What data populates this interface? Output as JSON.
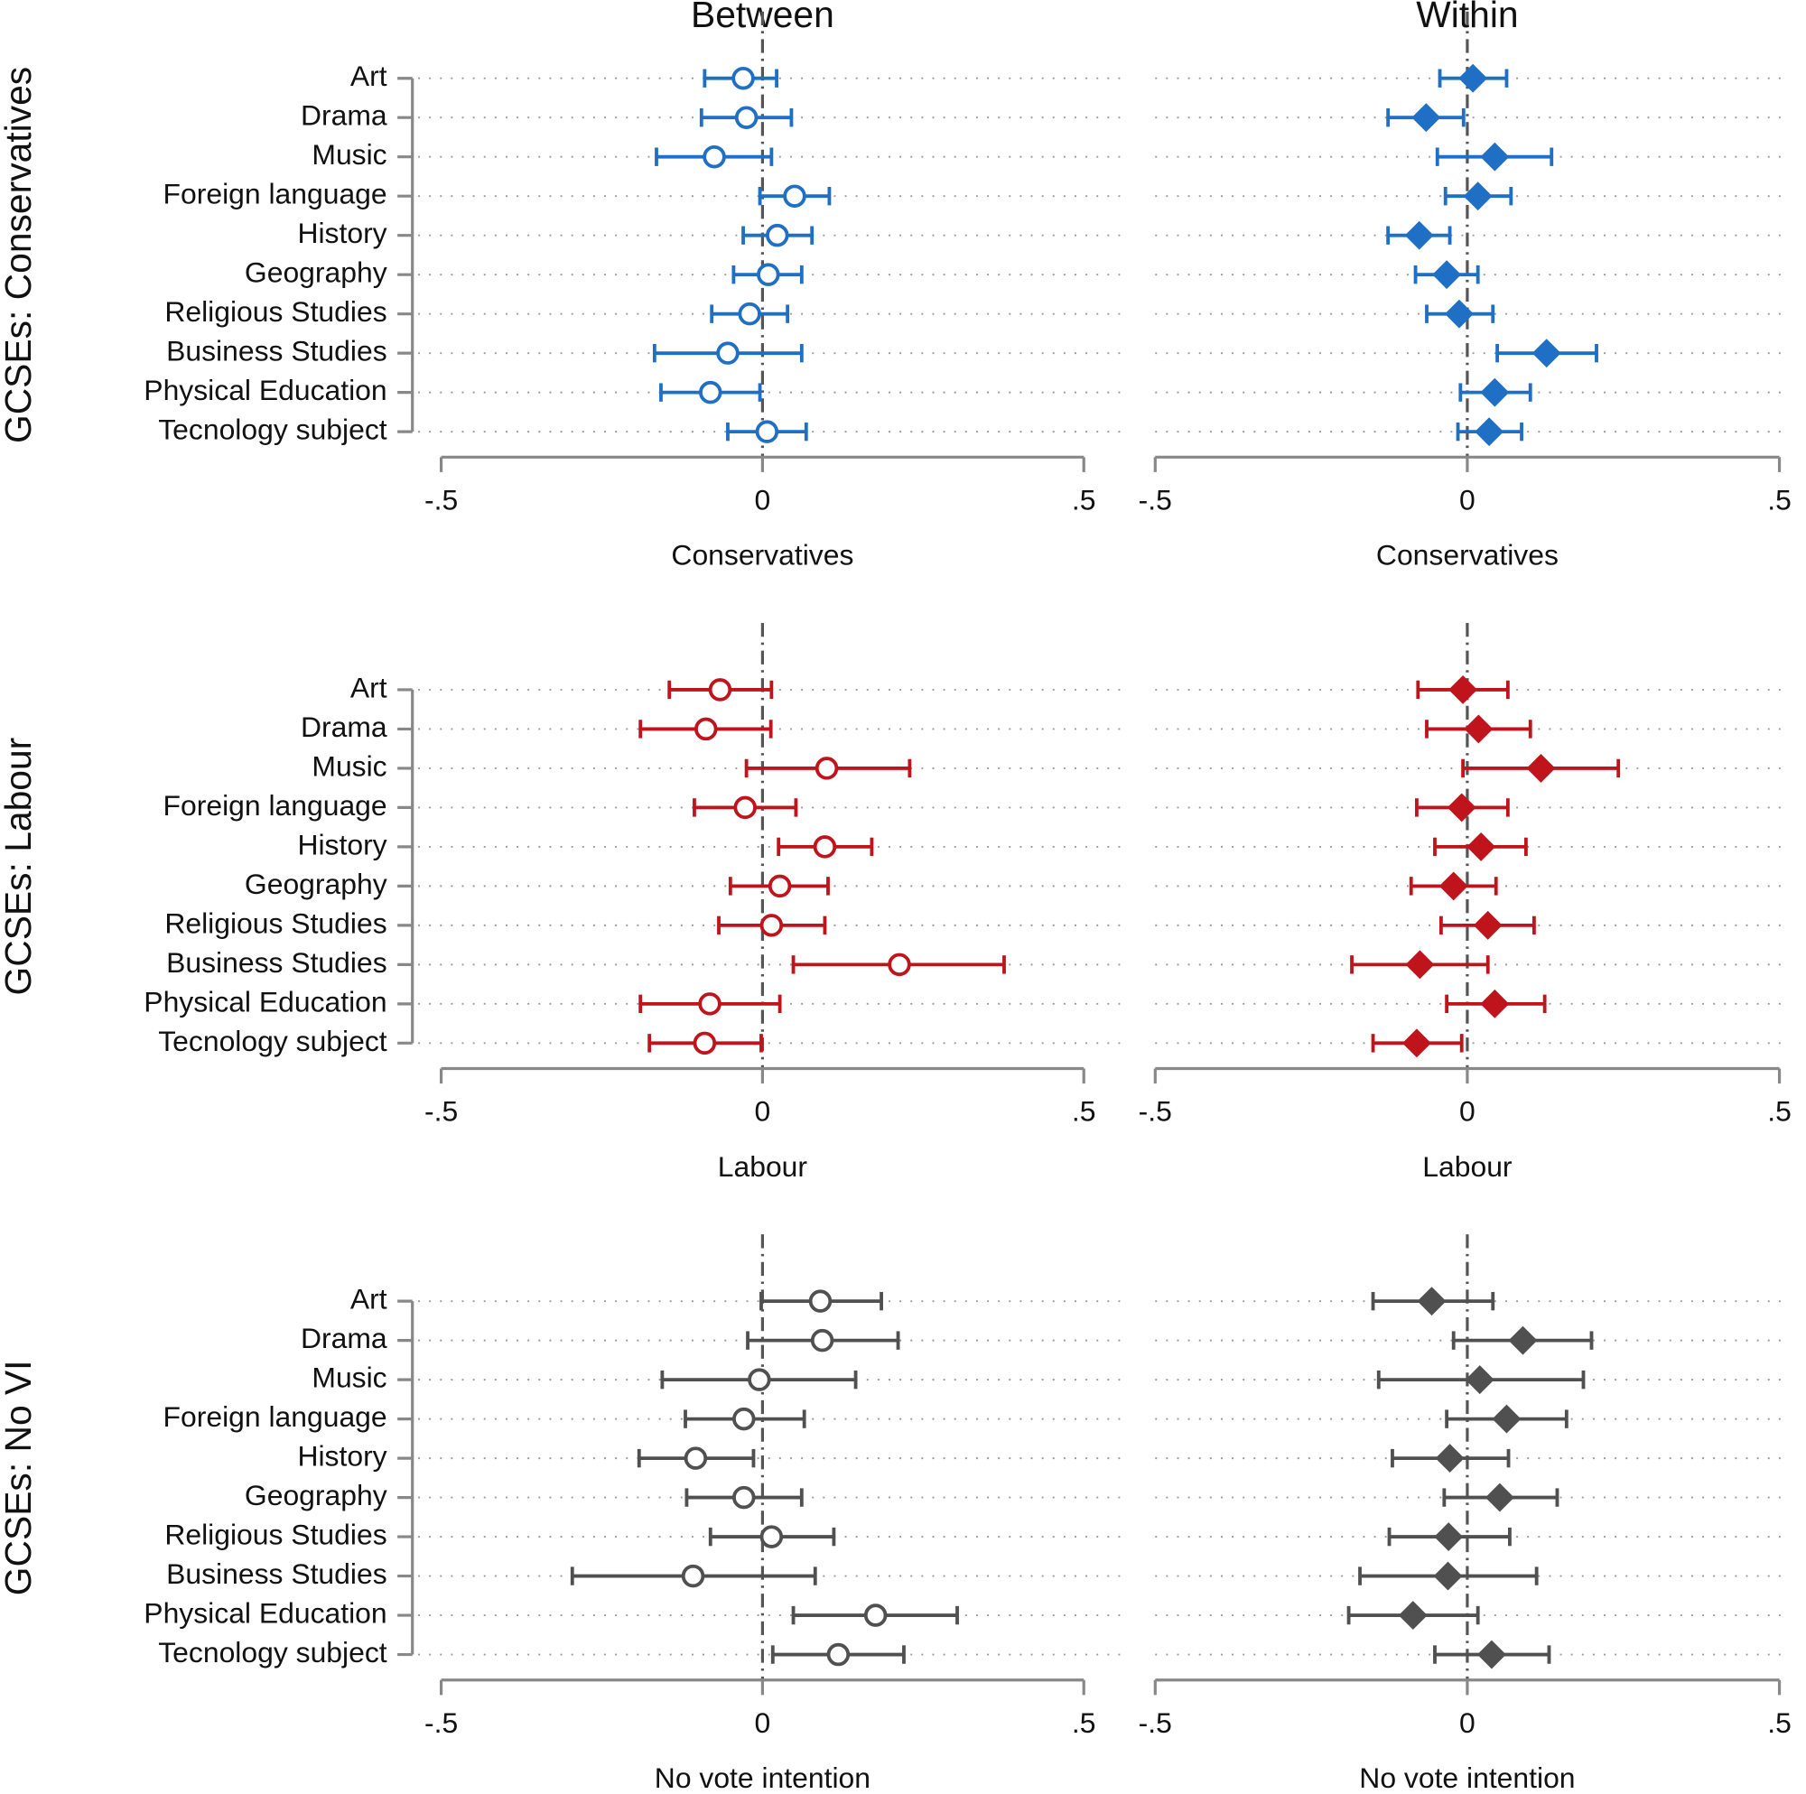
{
  "chart_data": [
    {
      "type": "coefplot",
      "title": "Between",
      "ylabel": "GCSEs: Conservatives",
      "xlabel": "Conservatives",
      "marker": "circle",
      "color": "#1f6fc5",
      "categories": [
        "Art",
        "Drama",
        "Music",
        "Foreign language",
        "History",
        "Geography",
        "Religious Studies",
        "Business Studies",
        "Physical Education",
        "Tecnology subject"
      ],
      "values": [
        -0.03,
        -0.025,
        -0.075,
        0.05,
        0.023,
        0.009,
        -0.02,
        -0.054,
        -0.081,
        0.007
      ],
      "lower": [
        -0.09,
        -0.095,
        -0.165,
        -0.004,
        -0.03,
        -0.045,
        -0.079,
        -0.168,
        -0.158,
        -0.054
      ],
      "upper": [
        0.022,
        0.045,
        0.014,
        0.104,
        0.077,
        0.061,
        0.039,
        0.061,
        -0.004,
        0.068
      ],
      "xlim": [
        -0.5,
        0.5
      ],
      "xticks": [
        {
          "value": -0.5,
          "label": "-.5"
        },
        0,
        {
          "value": 0.5,
          "label": ".5"
        }
      ]
    },
    {
      "type": "coefplot",
      "title": "Within",
      "xlabel": "Conservatives",
      "marker": "diamond",
      "color": "#1f6fc5",
      "values": [
        0.009,
        -0.066,
        0.044,
        0.017,
        -0.077,
        -0.033,
        -0.013,
        0.127,
        0.044,
        0.035
      ],
      "lower": [
        -0.044,
        -0.127,
        -0.048,
        -0.035,
        -0.127,
        -0.083,
        -0.065,
        0.048,
        -0.011,
        -0.015
      ],
      "upper": [
        0.063,
        -0.006,
        0.135,
        0.07,
        -0.028,
        0.017,
        0.041,
        0.207,
        0.101,
        0.087
      ],
      "xlim": [
        -0.5,
        0.5
      ],
      "xticks": [
        {
          "value": -0.5,
          "label": "-.5"
        },
        0,
        {
          "value": 0.5,
          "label": ".5"
        }
      ]
    },
    {
      "type": "coefplot",
      "ylabel": "GCSEs: Labour",
      "xlabel": "Labour",
      "marker": "circle",
      "color": "#c0141c",
      "categories": [
        "Art",
        "Drama",
        "Music",
        "Foreign language",
        "History",
        "Geography",
        "Religious Studies",
        "Business Studies",
        "Physical Education",
        "Tecnology subject"
      ],
      "values": [
        -0.066,
        -0.088,
        0.1,
        -0.027,
        0.097,
        0.027,
        0.014,
        0.213,
        -0.082,
        -0.09
      ],
      "lower": [
        -0.145,
        -0.19,
        -0.025,
        -0.106,
        0.025,
        -0.05,
        -0.068,
        0.048,
        -0.19,
        -0.176
      ],
      "upper": [
        0.014,
        0.013,
        0.229,
        0.052,
        0.17,
        0.102,
        0.097,
        0.376,
        0.027,
        -0.002
      ],
      "xlim": [
        -0.5,
        0.5
      ],
      "xticks": [
        {
          "value": -0.5,
          "label": "-.5"
        },
        0,
        {
          "value": 0.5,
          "label": ".5"
        }
      ]
    },
    {
      "type": "coefplot",
      "xlabel": "Labour",
      "marker": "diamond",
      "color": "#c0141c",
      "values": [
        -0.007,
        0.018,
        0.118,
        -0.009,
        0.022,
        -0.022,
        0.033,
        -0.076,
        0.044,
        -0.081
      ],
      "lower": [
        -0.079,
        -0.065,
        -0.007,
        -0.081,
        -0.052,
        -0.09,
        -0.042,
        -0.185,
        -0.033,
        -0.151
      ],
      "upper": [
        0.065,
        0.101,
        0.242,
        0.065,
        0.094,
        0.046,
        0.107,
        0.033,
        0.124,
        -0.009
      ],
      "xlim": [
        -0.5,
        0.5
      ],
      "xticks": [
        {
          "value": -0.5,
          "label": "-.5"
        },
        0,
        {
          "value": 0.5,
          "label": ".5"
        }
      ]
    },
    {
      "type": "coefplot",
      "ylabel": "GCSEs: No VI",
      "xlabel": "No vote intention",
      "marker": "circle",
      "color": "#505050",
      "categories": [
        "Art",
        "Drama",
        "Music",
        "Foreign language",
        "History",
        "Geography",
        "Religious Studies",
        "Business Studies",
        "Physical Education",
        "Tecnology subject"
      ],
      "values": [
        0.09,
        0.093,
        -0.005,
        -0.029,
        -0.104,
        -0.029,
        0.014,
        -0.108,
        0.176,
        0.118
      ],
      "lower": [
        -0.002,
        -0.023,
        -0.156,
        -0.12,
        -0.192,
        -0.118,
        -0.081,
        -0.296,
        0.048,
        0.016
      ],
      "upper": [
        0.185,
        0.211,
        0.145,
        0.065,
        -0.014,
        0.061,
        0.111,
        0.082,
        0.303,
        0.22
      ],
      "xlim": [
        -0.5,
        0.5
      ],
      "xticks": [
        {
          "value": -0.5,
          "label": "-.5"
        },
        0,
        {
          "value": 0.5,
          "label": ".5"
        }
      ]
    },
    {
      "type": "coefplot",
      "xlabel": "No vote intention",
      "marker": "diamond",
      "color": "#505050",
      "values": [
        -0.057,
        0.089,
        0.02,
        0.063,
        -0.028,
        0.052,
        -0.03,
        -0.031,
        -0.087,
        0.039
      ],
      "lower": [
        -0.151,
        -0.022,
        -0.142,
        -0.033,
        -0.12,
        -0.037,
        -0.125,
        -0.172,
        -0.19,
        -0.052
      ],
      "upper": [
        0.041,
        0.199,
        0.186,
        0.159,
        0.066,
        0.144,
        0.068,
        0.111,
        0.017,
        0.131
      ],
      "xlim": [
        -0.5,
        0.5
      ],
      "xticks": [
        {
          "value": -0.5,
          "label": "-.5"
        },
        0,
        {
          "value": 0.5,
          "label": ".5"
        }
      ]
    }
  ]
}
